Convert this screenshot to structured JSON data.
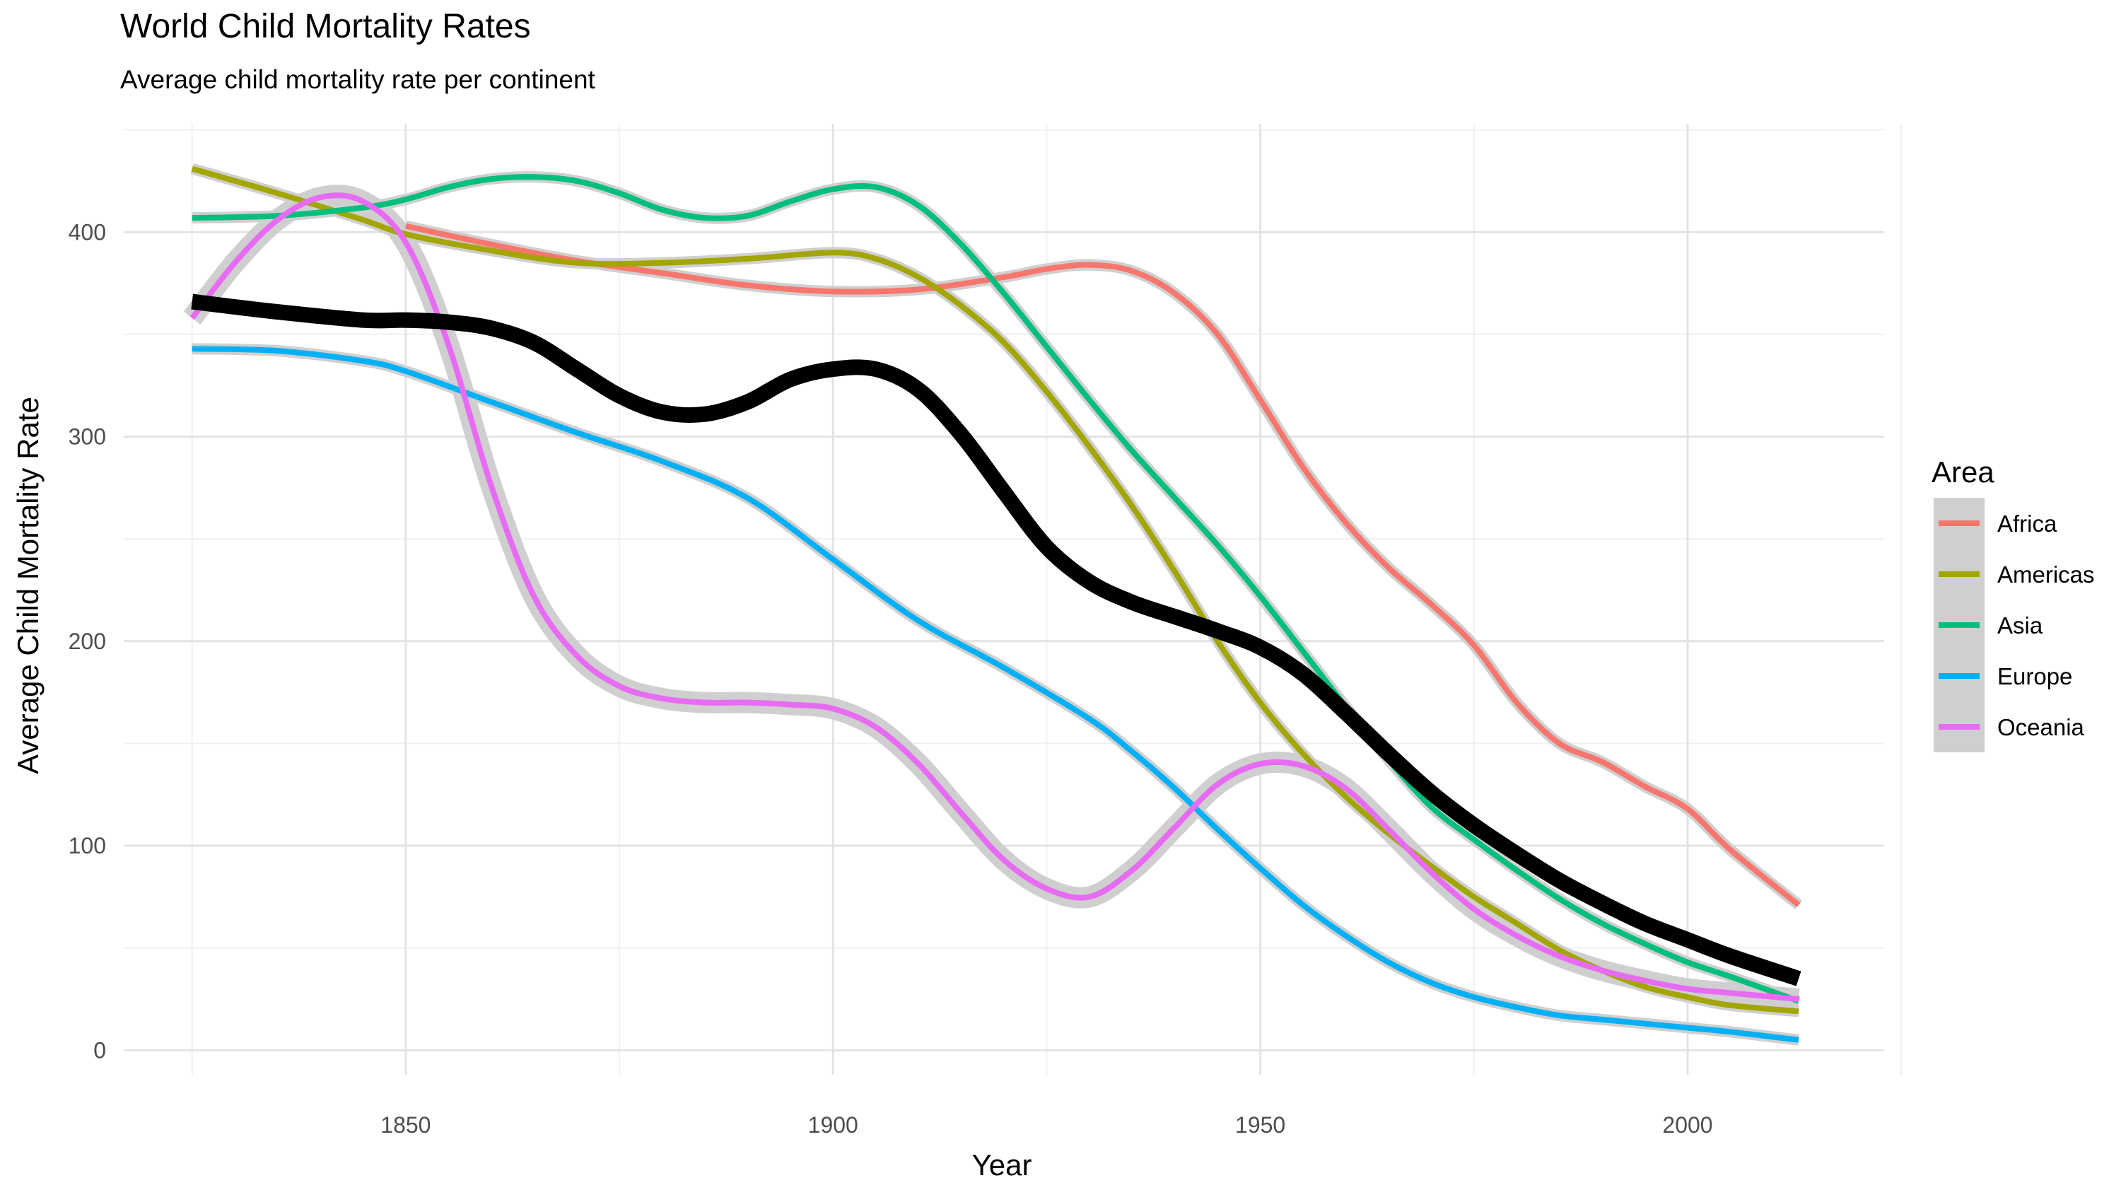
{
  "chart_data": {
    "type": "line",
    "title": "World Child Mortality Rates",
    "subtitle": "Average child mortality rate per continent",
    "xlabel": "Year",
    "ylabel": "Average Child Mortality Rate",
    "xlim": [
      1817,
      2023
    ],
    "ylim": [
      -12,
      453
    ],
    "x_ticks": [
      1850,
      1900,
      1950,
      2000
    ],
    "y_ticks": [
      0,
      100,
      200,
      300,
      400
    ],
    "grid": true,
    "legend": {
      "title": "Area",
      "position": "right"
    },
    "series": [
      {
        "name": "Africa",
        "color": "#F8766D",
        "se_band": true,
        "x": [
          1850,
          1860,
          1870,
          1880,
          1890,
          1900,
          1910,
          1920,
          1925,
          1930,
          1935,
          1940,
          1945,
          1950,
          1955,
          1960,
          1965,
          1970,
          1975,
          1980,
          1985,
          1990,
          1995,
          2000,
          2005,
          2013
        ],
        "y": [
          403,
          394,
          386,
          380,
          374,
          371,
          372,
          378,
          382,
          384,
          381,
          370,
          350,
          318,
          285,
          258,
          236,
          218,
          198,
          170,
          150,
          141,
          129,
          118,
          98,
          71
        ]
      },
      {
        "name": "Americas",
        "color": "#A3A500",
        "se_band": true,
        "x": [
          1825,
          1835,
          1845,
          1850,
          1860,
          1870,
          1880,
          1890,
          1900,
          1905,
          1910,
          1915,
          1920,
          1925,
          1930,
          1935,
          1940,
          1945,
          1950,
          1955,
          1960,
          1965,
          1970,
          1975,
          1980,
          1985,
          1990,
          1995,
          2000,
          2005,
          2013
        ],
        "y": [
          431,
          419,
          406,
          399,
          391,
          385,
          385,
          387,
          390,
          387,
          378,
          364,
          346,
          322,
          295,
          266,
          234,
          200,
          170,
          145,
          124,
          106,
          90,
          75,
          62,
          49,
          39,
          31,
          26,
          22,
          19
        ]
      },
      {
        "name": "Asia",
        "color": "#00BF7D",
        "se_band": true,
        "x": [
          1825,
          1835,
          1845,
          1850,
          1855,
          1860,
          1865,
          1870,
          1875,
          1880,
          1885,
          1890,
          1895,
          1900,
          1905,
          1910,
          1915,
          1920,
          1925,
          1930,
          1935,
          1940,
          1945,
          1950,
          1955,
          1960,
          1965,
          1970,
          1975,
          1980,
          1985,
          1990,
          1995,
          2000,
          2005,
          2013
        ],
        "y": [
          407,
          408,
          412,
          416,
          422,
          426,
          427,
          425,
          419,
          411,
          407,
          408,
          415,
          421,
          422,
          413,
          394,
          370,
          344,
          318,
          293,
          270,
          247,
          222,
          195,
          168,
          142,
          119,
          103,
          88,
          74,
          62,
          52,
          43,
          36,
          24
        ]
      },
      {
        "name": "Europe",
        "color": "#00B0F6",
        "se_band": true,
        "x": [
          1825,
          1835,
          1845,
          1850,
          1860,
          1870,
          1880,
          1890,
          1900,
          1910,
          1920,
          1930,
          1935,
          1940,
          1945,
          1950,
          1955,
          1960,
          1965,
          1970,
          1975,
          1980,
          1985,
          1990,
          1995,
          2000,
          2005,
          2013
        ],
        "y": [
          343,
          342,
          337,
          332,
          317,
          302,
          288,
          270,
          240,
          210,
          187,
          162,
          146,
          128,
          108,
          89,
          71,
          56,
          43,
          33,
          26,
          21,
          17,
          15,
          13,
          11,
          9,
          5
        ]
      },
      {
        "name": "Oceania",
        "color": "#E76BF3",
        "se_band": true,
        "x": [
          1825,
          1830,
          1835,
          1840,
          1845,
          1850,
          1855,
          1860,
          1865,
          1870,
          1875,
          1880,
          1885,
          1890,
          1895,
          1900,
          1905,
          1910,
          1915,
          1920,
          1925,
          1930,
          1935,
          1940,
          1945,
          1950,
          1955,
          1960,
          1965,
          1970,
          1975,
          1980,
          1985,
          1990,
          1995,
          2000,
          2005,
          2013
        ],
        "y": [
          358,
          385,
          406,
          417,
          415,
          395,
          345,
          276,
          222,
          193,
          178,
          172,
          170,
          170,
          169,
          167,
          158,
          140,
          116,
          93,
          79,
          75,
          88,
          109,
          130,
          140,
          139,
          128,
          108,
          87,
          69,
          56,
          46,
          39,
          34,
          30,
          28,
          25
        ]
      },
      {
        "name": "",
        "color": "#000000",
        "se_band": false,
        "thick": true,
        "x": [
          1825,
          1835,
          1845,
          1850,
          1855,
          1860,
          1865,
          1870,
          1875,
          1880,
          1885,
          1890,
          1895,
          1900,
          1905,
          1910,
          1915,
          1920,
          1925,
          1930,
          1935,
          1940,
          1945,
          1950,
          1955,
          1960,
          1965,
          1970,
          1975,
          1980,
          1985,
          1990,
          1995,
          2000,
          2005,
          2013
        ],
        "y": [
          366,
          361,
          357,
          357,
          356,
          353,
          346,
          333,
          320,
          312,
          311,
          317,
          328,
          333,
          333,
          323,
          301,
          273,
          246,
          229,
          219,
          212,
          205,
          197,
          184,
          165,
          145,
          126,
          110,
          96,
          83,
          72,
          62,
          54,
          46,
          35
        ]
      }
    ]
  }
}
